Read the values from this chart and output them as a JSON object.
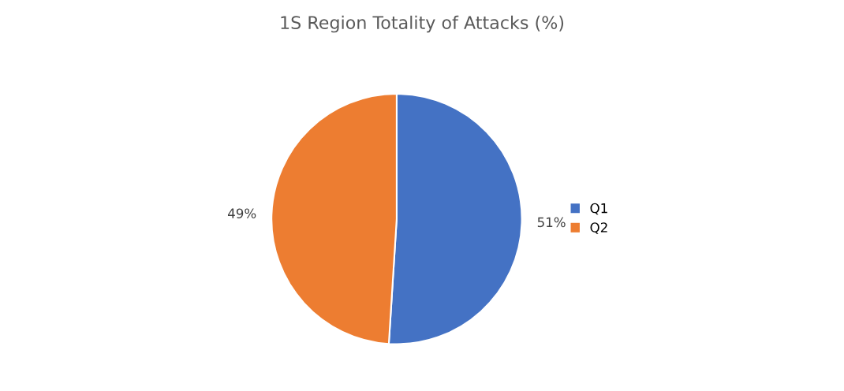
{
  "chart_data": {
    "type": "pie",
    "title": "1S Region Totality of Attacks (%)",
    "categories": [
      "Q1",
      "Q2"
    ],
    "values": [
      51,
      49
    ],
    "colors": [
      "#4472c4",
      "#ed7d31"
    ],
    "value_labels": [
      "51%",
      "49%"
    ],
    "legend": "right"
  }
}
